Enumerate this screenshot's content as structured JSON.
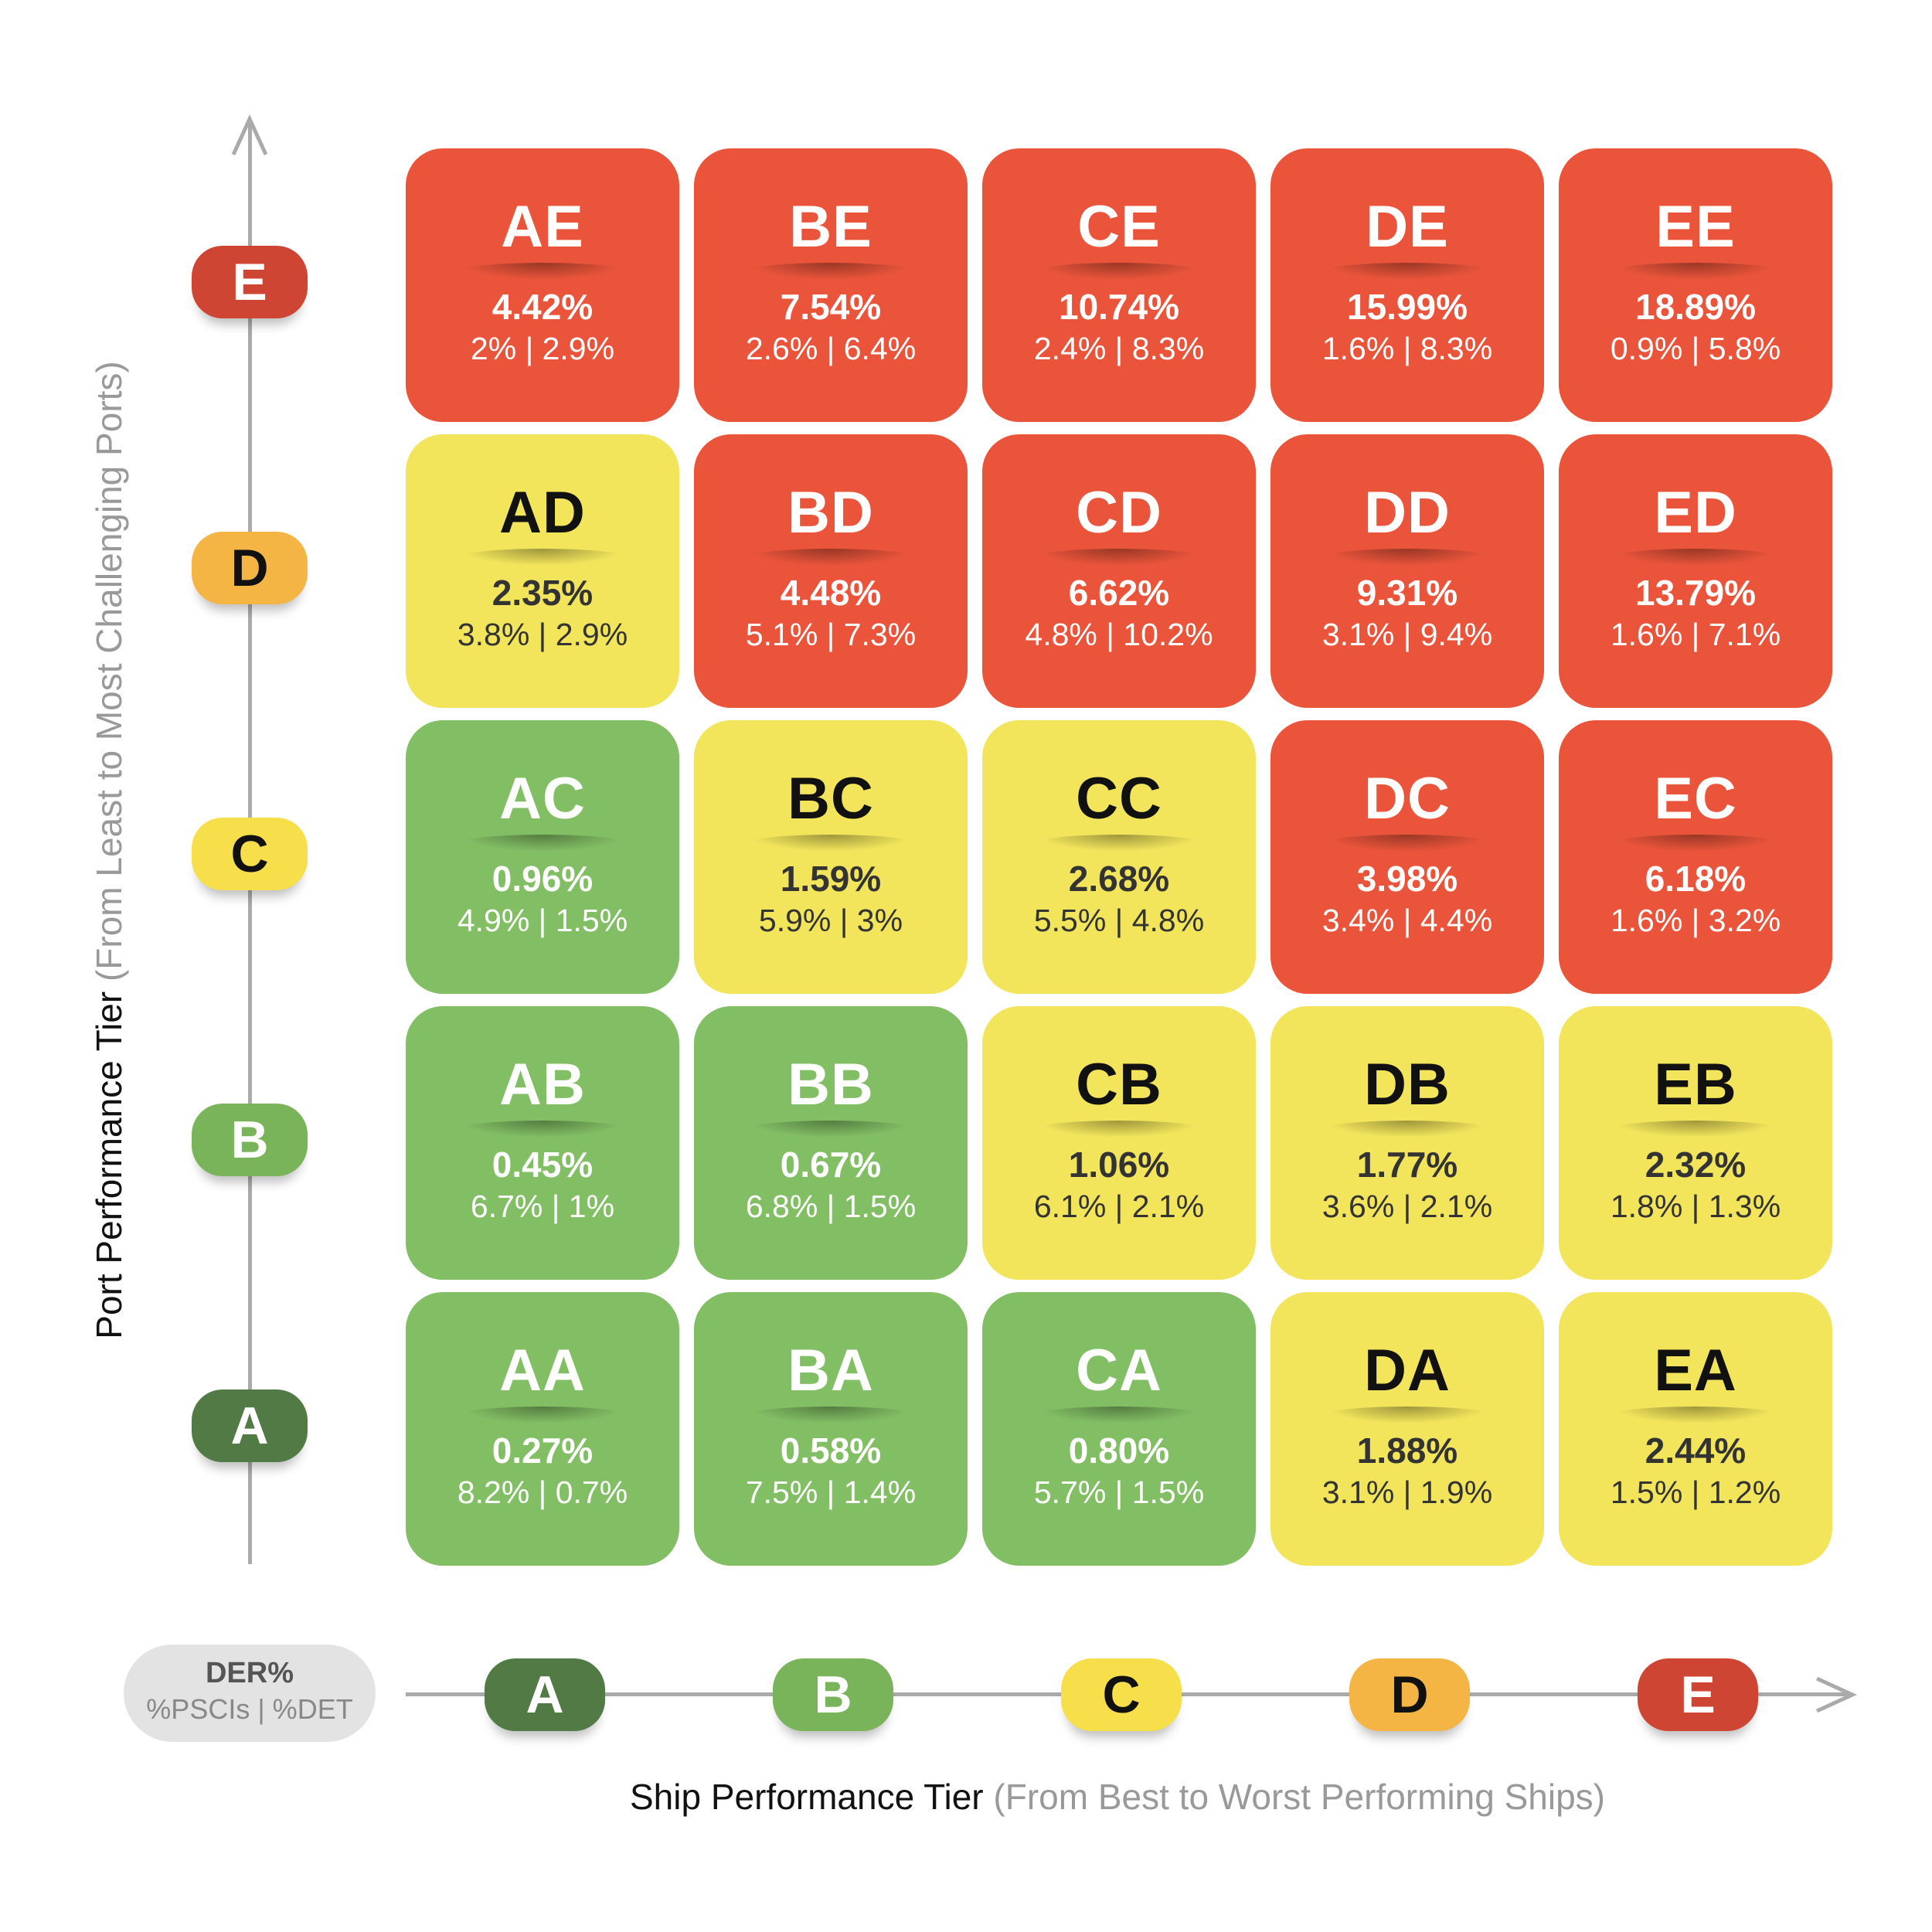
{
  "y_axis": {
    "title": "Port Performance Tier",
    "subtitle": "(From Least to Most Challenging Ports)",
    "tiers": [
      "E",
      "D",
      "C",
      "B",
      "A"
    ]
  },
  "x_axis": {
    "title": "Ship Performance Tier",
    "subtitle": "(From Best to Worst Performing Ships)",
    "tiers": [
      "A",
      "B",
      "C",
      "D",
      "E"
    ]
  },
  "legend": {
    "line1": "DER%",
    "line2": "%PSCIs | %DET"
  },
  "colors": {
    "red": "#E9543A",
    "yellow": "#F2E55C",
    "green": "#82BE64",
    "tierA": "#517A45",
    "tierB": "#79B35A",
    "tierC": "#F7DE4B",
    "tierD": "#F5B544",
    "tierE": "#CE4633"
  },
  "rows": [
    [
      {
        "code": "AE",
        "der": "4.42%",
        "sub": "2% | 2.9%",
        "color": "red"
      },
      {
        "code": "BE",
        "der": "7.54%",
        "sub": "2.6% | 6.4%",
        "color": "red"
      },
      {
        "code": "CE",
        "der": "10.74%",
        "sub": "2.4% | 8.3%",
        "color": "red"
      },
      {
        "code": "DE",
        "der": "15.99%",
        "sub": "1.6% | 8.3%",
        "color": "red"
      },
      {
        "code": "EE",
        "der": "18.89%",
        "sub": "0.9% | 5.8%",
        "color": "red"
      }
    ],
    [
      {
        "code": "AD",
        "der": "2.35%",
        "sub": "3.8% | 2.9%",
        "color": "yellow"
      },
      {
        "code": "BD",
        "der": "4.48%",
        "sub": "5.1% | 7.3%",
        "color": "red"
      },
      {
        "code": "CD",
        "der": "6.62%",
        "sub": "4.8% | 10.2%",
        "color": "red"
      },
      {
        "code": "DD",
        "der": "9.31%",
        "sub": "3.1% | 9.4%",
        "color": "red"
      },
      {
        "code": "ED",
        "der": "13.79%",
        "sub": "1.6% | 7.1%",
        "color": "red"
      }
    ],
    [
      {
        "code": "AC",
        "der": "0.96%",
        "sub": "4.9% | 1.5%",
        "color": "green"
      },
      {
        "code": "BC",
        "der": "1.59%",
        "sub": "5.9% | 3%",
        "color": "yellow"
      },
      {
        "code": "CC",
        "der": "2.68%",
        "sub": "5.5% | 4.8%",
        "color": "yellow"
      },
      {
        "code": "DC",
        "der": "3.98%",
        "sub": "3.4% | 4.4%",
        "color": "red"
      },
      {
        "code": "EC",
        "der": "6.18%",
        "sub": "1.6% | 3.2%",
        "color": "red"
      }
    ],
    [
      {
        "code": "AB",
        "der": "0.45%",
        "sub": "6.7% | 1%",
        "color": "green"
      },
      {
        "code": "BB",
        "der": "0.67%",
        "sub": "6.8% | 1.5%",
        "color": "green"
      },
      {
        "code": "CB",
        "der": "1.06%",
        "sub": "6.1% | 2.1%",
        "color": "yellow"
      },
      {
        "code": "DB",
        "der": "1.77%",
        "sub": "3.6% | 2.1%",
        "color": "yellow"
      },
      {
        "code": "EB",
        "der": "2.32%",
        "sub": "1.8% | 1.3%",
        "color": "yellow"
      }
    ],
    [
      {
        "code": "AA",
        "der": "0.27%",
        "sub": "8.2% | 0.7%",
        "color": "green"
      },
      {
        "code": "BA",
        "der": "0.58%",
        "sub": "7.5% | 1.4%",
        "color": "green"
      },
      {
        "code": "CA",
        "der": "0.80%",
        "sub": "5.7% | 1.5%",
        "color": "green"
      },
      {
        "code": "DA",
        "der": "1.88%",
        "sub": "3.1% | 1.9%",
        "color": "yellow"
      },
      {
        "code": "EA",
        "der": "2.44%",
        "sub": "1.5% | 1.2%",
        "color": "yellow"
      }
    ]
  ]
}
